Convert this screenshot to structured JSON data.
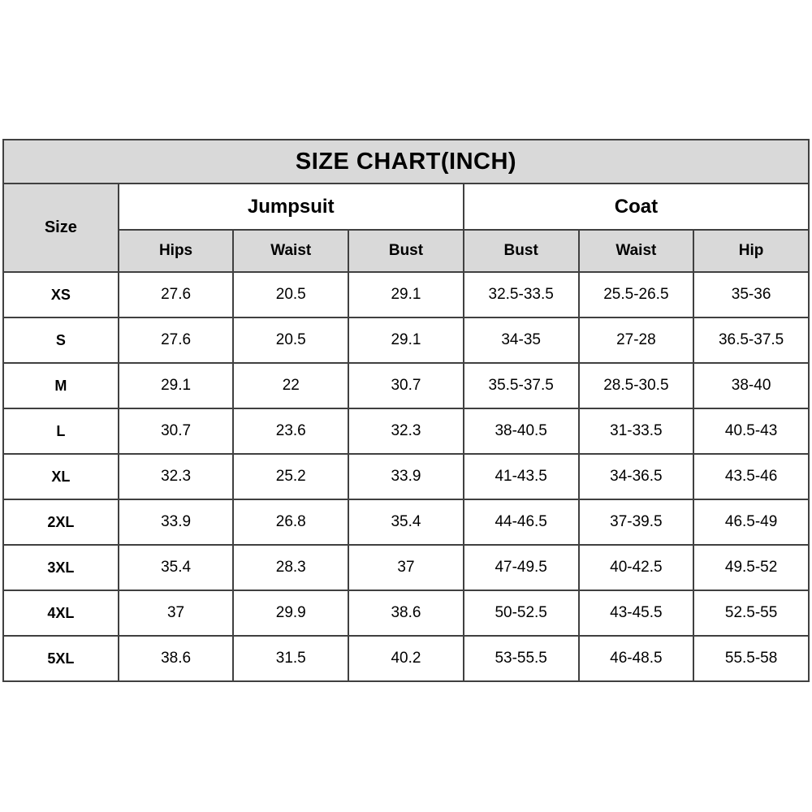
{
  "chart_data": {
    "type": "table",
    "title": "SIZE CHART(INCH)",
    "unit": "inch",
    "size_column_header": "Size",
    "groups": [
      {
        "label": "Jumpsuit",
        "columns": [
          "Hips",
          "Waist",
          "Bust"
        ]
      },
      {
        "label": "Coat",
        "columns": [
          "Bust",
          "Waist",
          "Hip"
        ]
      }
    ],
    "rows": [
      {
        "size": "XS",
        "values": [
          "27.6",
          "20.5",
          "29.1",
          "32.5-33.5",
          "25.5-26.5",
          "35-36"
        ]
      },
      {
        "size": "S",
        "values": [
          "27.6",
          "20.5",
          "29.1",
          "34-35",
          "27-28",
          "36.5-37.5"
        ]
      },
      {
        "size": "M",
        "values": [
          "29.1",
          "22",
          "30.7",
          "35.5-37.5",
          "28.5-30.5",
          "38-40"
        ]
      },
      {
        "size": "L",
        "values": [
          "30.7",
          "23.6",
          "32.3",
          "38-40.5",
          "31-33.5",
          "40.5-43"
        ]
      },
      {
        "size": "XL",
        "values": [
          "32.3",
          "25.2",
          "33.9",
          "41-43.5",
          "34-36.5",
          "43.5-46"
        ]
      },
      {
        "size": "2XL",
        "values": [
          "33.9",
          "26.8",
          "35.4",
          "44-46.5",
          "37-39.5",
          "46.5-49"
        ]
      },
      {
        "size": "3XL",
        "values": [
          "35.4",
          "28.3",
          "37",
          "47-49.5",
          "40-42.5",
          "49.5-52"
        ]
      },
      {
        "size": "4XL",
        "values": [
          "37",
          "29.9",
          "38.6",
          "50-52.5",
          "43-45.5",
          "52.5-55"
        ]
      },
      {
        "size": "5XL",
        "values": [
          "38.6",
          "31.5",
          "40.2",
          "53-55.5",
          "46-48.5",
          "55.5-58"
        ]
      }
    ]
  },
  "colors": {
    "header_bg": "#d9d9d9",
    "border": "#404040",
    "text": "#000000",
    "page_bg": "#ffffff"
  }
}
